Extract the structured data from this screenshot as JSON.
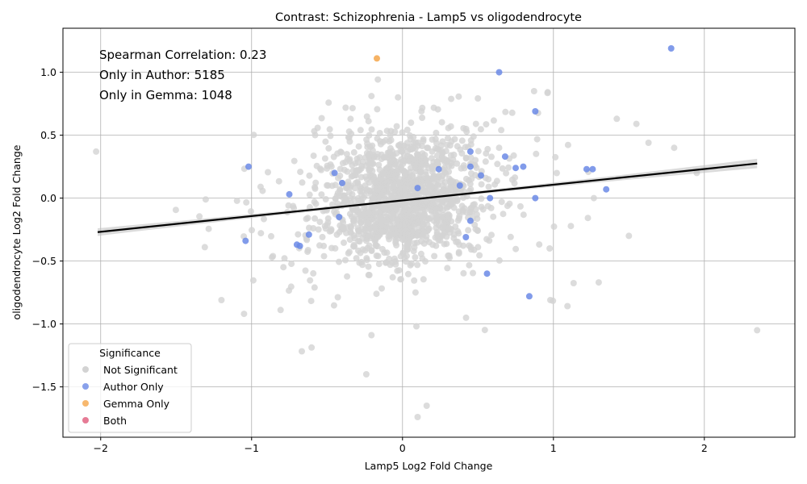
{
  "chart_data": {
    "type": "scatter",
    "title": "Contrast: Schizophrenia - Lamp5 vs oligodendrocyte",
    "xlabel": "Lamp5 Log2 Fold Change",
    "ylabel": "oligodendrocyte Log2 Fold Change",
    "xlim": [
      -2.25,
      2.6
    ],
    "ylim": [
      -1.9,
      1.35
    ],
    "x_ticks": [
      -2,
      -1,
      0,
      1,
      2
    ],
    "y_ticks": [
      -1.5,
      -1.0,
      -0.5,
      0.0,
      0.5,
      1.0
    ],
    "x_tick_labels": [
      "−2",
      "−1",
      "0",
      "1",
      "2"
    ],
    "y_tick_labels": [
      "−1.5",
      "−1.0",
      "−0.5",
      "0.0",
      "0.5",
      "1.0"
    ],
    "grid": true,
    "annotations": [
      "Spearman Correlation: 0.23",
      "Only in Author: 5185",
      "Only in Gemma: 1048"
    ],
    "legend": {
      "title": "Significance",
      "placement": "bottom-left",
      "entries": [
        {
          "label": "Not Significant",
          "color": "#d3d3d3"
        },
        {
          "label": "Author Only",
          "color": "#6b8ae6"
        },
        {
          "label": "Gemma Only",
          "color": "#f5a64a"
        },
        {
          "label": "Both",
          "color": "#e05a7a"
        }
      ]
    },
    "regression_line": {
      "x": [
        -2.02,
        2.35
      ],
      "y": [
        -0.27,
        0.275
      ],
      "color": "#000000"
    },
    "series": [
      {
        "name": "Author Only",
        "color": "#6b8ae6",
        "points": [
          [
            1.78,
            1.19
          ],
          [
            0.64,
            1.0
          ],
          [
            0.88,
            0.69
          ],
          [
            0.45,
            0.37
          ],
          [
            0.68,
            0.33
          ],
          [
            0.8,
            0.25
          ],
          [
            0.75,
            0.24
          ],
          [
            1.22,
            0.23
          ],
          [
            1.26,
            0.23
          ],
          [
            0.45,
            0.25
          ],
          [
            -1.02,
            0.25
          ],
          [
            -0.45,
            0.2
          ],
          [
            0.52,
            0.18
          ],
          [
            0.24,
            0.23
          ],
          [
            1.35,
            0.07
          ],
          [
            -0.75,
            0.03
          ],
          [
            0.88,
            0.0
          ],
          [
            0.58,
            0.0
          ],
          [
            -0.62,
            -0.29
          ],
          [
            0.42,
            -0.31
          ],
          [
            -0.7,
            -0.37
          ],
          [
            -0.68,
            -0.38
          ],
          [
            -1.04,
            -0.34
          ],
          [
            0.56,
            -0.6
          ],
          [
            0.84,
            -0.78
          ],
          [
            0.38,
            0.1
          ],
          [
            0.1,
            0.08
          ],
          [
            -0.4,
            0.12
          ],
          [
            0.45,
            -0.18
          ],
          [
            -0.42,
            -0.15
          ]
        ]
      },
      {
        "name": "Gemma Only",
        "color": "#f5a64a",
        "points": [
          [
            -0.17,
            1.11
          ]
        ]
      }
    ]
  }
}
